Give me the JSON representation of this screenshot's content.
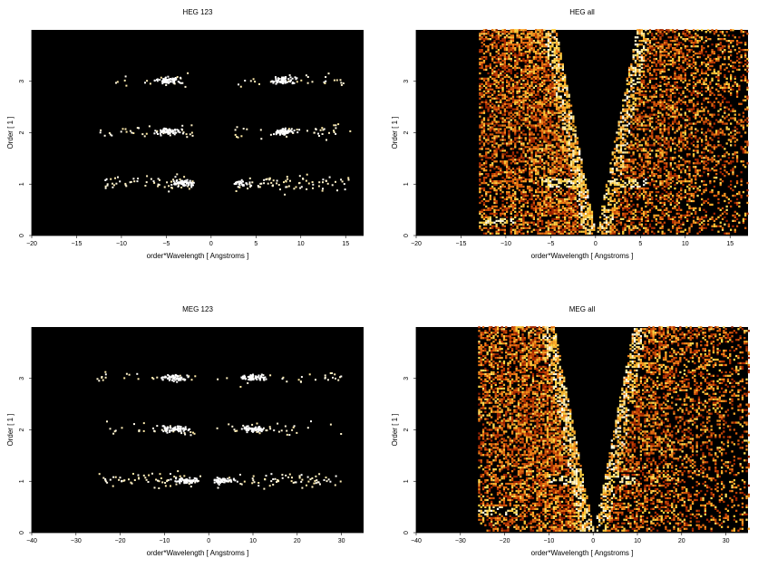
{
  "chart_data": [
    {
      "type": "heatmap",
      "title": "HEG 123",
      "xlabel": "order*Wavelength [ Angstroms ]",
      "ylabel": "Order [ 1 ]",
      "xlim": [
        -20,
        17
      ],
      "ylim": [
        0,
        4
      ],
      "xticks": [
        -20,
        -15,
        -10,
        -5,
        0,
        5,
        10,
        15
      ],
      "yticks": [
        0,
        1,
        2,
        3
      ],
      "colormap": "black-red-yellow-white",
      "background": "#000000",
      "bands": [
        {
          "order": 1,
          "x_range": [
            -12,
            15.5
          ],
          "peak_x": [
            -3,
            2.5
          ],
          "density": 0.18,
          "intensity": 1.0
        },
        {
          "order": 2,
          "x_range": [
            -12.5,
            15.5
          ],
          "peak_x": [
            -5,
            8
          ],
          "density": 0.1,
          "intensity": 1.0
        },
        {
          "order": 3,
          "x_range": [
            -12,
            15.5
          ],
          "peak_x": [
            -5,
            8
          ],
          "density": 0.06,
          "intensity": 1.0
        }
      ],
      "gap_x": [
        -2,
        2.5
      ],
      "cone": false
    },
    {
      "type": "heatmap",
      "title": "HEG all",
      "xlabel": "order*Wavelength [ Angstroms ]",
      "ylabel": "Order [ 1 ]",
      "xlim": [
        -20,
        17
      ],
      "ylim": [
        0,
        4
      ],
      "xticks": [
        -20,
        -15,
        -10,
        -5,
        0,
        5,
        10,
        15
      ],
      "yticks": [
        0,
        1,
        2,
        3
      ],
      "colormap": "black-red-yellow-white",
      "background": "#000000",
      "data_x_range": [
        -13,
        17
      ],
      "cone": true,
      "cone_apex_x": 0,
      "cone_top_half_width": 4.5,
      "features": [
        {
          "kind": "band",
          "order": 1,
          "peak_x": [
            -4,
            3.5
          ]
        },
        {
          "kind": "band",
          "order": 0.25,
          "peak_x": [
            -11.5
          ]
        }
      ]
    },
    {
      "type": "heatmap",
      "title": "MEG 123",
      "xlabel": "order*Wavelength [ Angstroms ]",
      "ylabel": "Order [ 1 ]",
      "xlim": [
        -40,
        35
      ],
      "ylim": [
        0,
        4
      ],
      "xticks": [
        -40,
        -30,
        -20,
        -10,
        0,
        10,
        20,
        30
      ],
      "yticks": [
        0,
        1,
        2,
        3
      ],
      "colormap": "black-red-yellow-white",
      "background": "#000000",
      "bands": [
        {
          "order": 1,
          "x_range": [
            -25,
            30
          ],
          "peak_x": [
            -5,
            3
          ],
          "density": 0.15,
          "intensity": 1.0
        },
        {
          "order": 2,
          "x_range": [
            -24,
            30
          ],
          "peak_x": [
            -8,
            10
          ],
          "density": 0.07,
          "intensity": 1.0
        },
        {
          "order": 3,
          "x_range": [
            -26,
            30
          ],
          "peak_x": [
            -8,
            10
          ],
          "density": 0.06,
          "intensity": 1.0
        }
      ],
      "gap_x": [
        -2,
        1
      ],
      "cone": false
    },
    {
      "type": "heatmap",
      "title": "MEG all",
      "xlabel": "order*Wavelength [ Angstroms ]",
      "ylabel": "Order [ 1 ]",
      "xlim": [
        -40,
        35
      ],
      "ylim": [
        0,
        4
      ],
      "xticks": [
        -40,
        -30,
        -20,
        -10,
        0,
        10,
        20,
        30
      ],
      "yticks": [
        0,
        1,
        2,
        3
      ],
      "colormap": "black-red-yellow-white",
      "background": "#000000",
      "data_x_range": [
        -26,
        35
      ],
      "cone": true,
      "cone_apex_x": 0,
      "cone_top_half_width": 9,
      "features": [
        {
          "kind": "band",
          "order": 1,
          "peak_x": [
            -6,
            5
          ]
        },
        {
          "kind": "band",
          "order": 0.4,
          "peak_x": [
            -22
          ]
        }
      ]
    }
  ]
}
